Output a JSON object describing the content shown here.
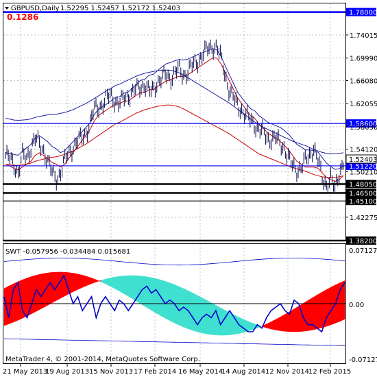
{
  "main": {
    "symbol_label": "GBPUSD,Daily",
    "ohlc_label": "1.52295 1.52457 1.52172 1.52403",
    "indicator_value": "0.1286",
    "current_price": "1.52403",
    "price_axis": [
      "1.74015",
      "1.69990",
      "1.66080",
      "1.62055",
      "1.58030",
      "1.54120",
      "1.50210",
      "1.42275"
    ],
    "levels": [
      {
        "label": "1.78000",
        "value": 1.78
      },
      {
        "label": "1.58600",
        "value": 1.586
      },
      {
        "label": "1.51220",
        "value": 1.5122
      },
      {
        "label": "1.48050",
        "value": 1.4805
      },
      {
        "label": "1.46500",
        "value": 1.465
      },
      {
        "label": "1.45100",
        "value": 1.451
      },
      {
        "label": "1.38200",
        "value": 1.382
      }
    ]
  },
  "sub": {
    "title_label": "SWT -0.057956 -0.034484 0.015681",
    "axis_top": "0.07127",
    "axis_zero": "0.00",
    "axis_bottom": "-0.07127"
  },
  "time_axis": [
    "21 May 2013",
    "19 Aug 2013",
    "15 Nov 2013",
    "17 Feb 2014",
    "16 May 2014",
    "14 Aug 2014",
    "12 Nov 2014",
    "12 Feb 2015"
  ],
  "footer": "MetaTrader 4, © 2001-2014, MetaQuotes Software Corp.",
  "colors": {
    "candles": "#1a1a5a",
    "ma_fast": "#cc0000",
    "ma_slow": "#1a1aa0",
    "level_blue": "#0000ff",
    "label_blue_bg": "#0000ff",
    "fill_red": "#ff0000",
    "fill_teal": "#40e0d0",
    "swt_line": "#0000cc",
    "indicator_text": "#ff0000"
  },
  "chart_data": {
    "type": "candlestick",
    "price_series": [
      1.53,
      1.525,
      1.515,
      1.5,
      1.53,
      1.525,
      1.545,
      1.56,
      1.55,
      1.54,
      1.52,
      1.5,
      1.49,
      1.5,
      1.52,
      1.535,
      1.545,
      1.555,
      1.56,
      1.57,
      1.585,
      1.61,
      1.615,
      1.62,
      1.63,
      1.635,
      1.625,
      1.62,
      1.63,
      1.635,
      1.64,
      1.645,
      1.65,
      1.655,
      1.64,
      1.645,
      1.66,
      1.665,
      1.67,
      1.665,
      1.675,
      1.68,
      1.67,
      1.675,
      1.685,
      1.69,
      1.7,
      1.71,
      1.715,
      1.72,
      1.72,
      1.7,
      1.67,
      1.645,
      1.63,
      1.615,
      1.61,
      1.6,
      1.59,
      1.585,
      1.575,
      1.57,
      1.56,
      1.56,
      1.56,
      1.55,
      1.545,
      1.525,
      1.51,
      1.505,
      1.51,
      1.52,
      1.53,
      1.545,
      1.52,
      1.49,
      1.48,
      1.49,
      1.47,
      1.5,
      1.52
    ],
    "ma_fast": [
      1.515,
      1.512,
      1.508,
      1.505,
      1.51,
      1.515,
      1.52,
      1.53,
      1.535,
      1.53,
      1.525,
      1.518,
      1.515,
      1.51,
      1.515,
      1.525,
      1.535,
      1.545,
      1.555,
      1.565,
      1.575,
      1.59,
      1.6,
      1.605,
      1.61,
      1.615,
      1.62,
      1.62,
      1.625,
      1.625,
      1.63,
      1.635,
      1.64,
      1.64,
      1.645,
      1.645,
      1.65,
      1.655,
      1.66,
      1.662,
      1.665,
      1.668,
      1.668,
      1.67,
      1.675,
      1.68,
      1.685,
      1.69,
      1.695,
      1.7,
      1.7,
      1.69,
      1.675,
      1.66,
      1.645,
      1.63,
      1.62,
      1.61,
      1.6,
      1.595,
      1.585,
      1.578,
      1.57,
      1.565,
      1.56,
      1.555,
      1.548,
      1.54,
      1.53,
      1.52,
      1.515,
      1.51,
      1.51,
      1.51,
      1.508,
      1.5,
      1.492,
      1.488,
      1.485,
      1.488,
      1.495
    ],
    "ma_slow": [
      1.515,
      1.514,
      1.513,
      1.513,
      1.514,
      1.515,
      1.517,
      1.52,
      1.522,
      1.524,
      1.526,
      1.527,
      1.528,
      1.53,
      1.532,
      1.535,
      1.538,
      1.542,
      1.546,
      1.55,
      1.555,
      1.56,
      1.565,
      1.57,
      1.575,
      1.58,
      1.585,
      1.588,
      1.592,
      1.596,
      1.6,
      1.604,
      1.607,
      1.61,
      1.612,
      1.614,
      1.616,
      1.617,
      1.618,
      1.618,
      1.617,
      1.615,
      1.612,
      1.608,
      1.604,
      1.6,
      1.596,
      1.592,
      1.588,
      1.584,
      1.58,
      1.576,
      1.572,
      1.568,
      1.563,
      1.558,
      1.553,
      1.548,
      1.543,
      1.538,
      1.533,
      1.53,
      1.527,
      1.524,
      1.521,
      1.518,
      1.515,
      1.512,
      1.509,
      1.507,
      1.505,
      1.503,
      1.5,
      1.497,
      1.495,
      1.493,
      1.492,
      1.492,
      1.492,
      1.493,
      1.495
    ],
    "swt_series": [
      0.01,
      -0.02,
      0.02,
      0.03,
      -0.01,
      -0.02,
      0.0,
      0.02,
      0.01,
      0.02,
      0.03,
      0.02,
      0.03,
      0.04,
      0.02,
      0.0,
      0.01,
      -0.01,
      0.0,
      0.01,
      -0.02,
      0.0,
      0.01,
      0.0,
      -0.01,
      0.005,
      0.0,
      -0.01,
      0.0,
      0.01,
      0.02,
      0.025,
      0.015,
      0.02,
      0.01,
      0.0,
      0.005,
      0.0,
      -0.01,
      -0.005,
      -0.01,
      -0.02,
      -0.03,
      -0.02,
      -0.015,
      -0.02,
      -0.01,
      -0.03,
      -0.02,
      -0.01,
      -0.02,
      -0.03,
      -0.035,
      -0.04,
      -0.04,
      -0.03,
      -0.035,
      -0.02,
      -0.01,
      -0.005,
      0.0,
      -0.01,
      -0.015,
      0.005,
      0.0,
      -0.02,
      -0.03,
      -0.03,
      -0.035,
      -0.04,
      -0.02,
      -0.01,
      0.0,
      0.02,
      0.03
    ],
    "swt_ylim": [
      -0.07127,
      0.07127
    ],
    "ylim": [
      1.382,
      1.795
    ]
  }
}
